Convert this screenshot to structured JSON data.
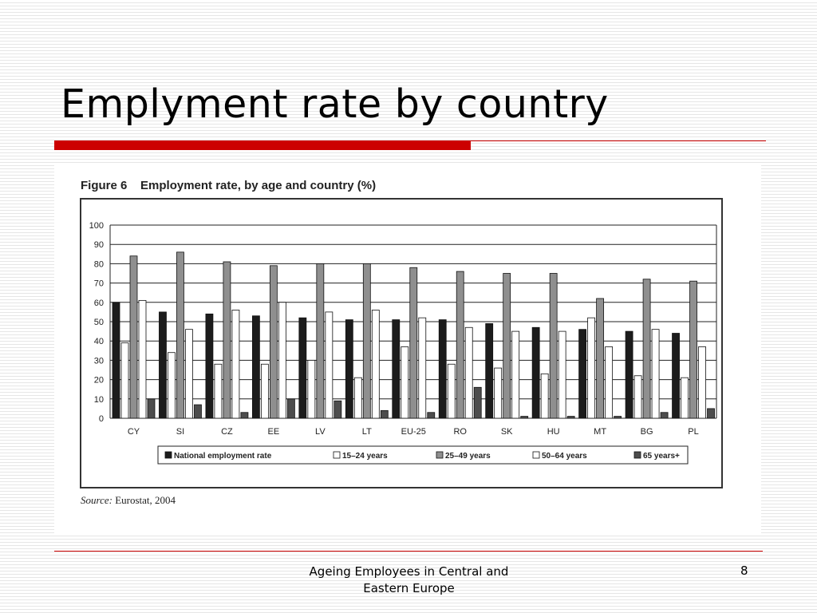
{
  "slide": {
    "title": "Emplyment rate by country",
    "footer_text": "Ageing Employees in Central and Eastern Europe",
    "page_number": "8",
    "accent_color": "#cc0000"
  },
  "figure": {
    "number": "Figure 6",
    "caption": "Employment rate, by age and country (%)",
    "source_label": "Source:",
    "source_text": "Eurostat, 2004"
  },
  "chart_data": {
    "type": "bar",
    "title": "Employment rate, by age and country (%)",
    "categories": [
      "CY",
      "SI",
      "CZ",
      "EE",
      "LV",
      "LT",
      "EU-25",
      "RO",
      "SK",
      "HU",
      "MT",
      "BG",
      "PL"
    ],
    "yticks": [
      0,
      10,
      20,
      30,
      40,
      50,
      60,
      70,
      80,
      90,
      100
    ],
    "ylim": [
      0,
      100
    ],
    "grid": true,
    "legend_position": "bottom",
    "series": [
      {
        "name": "National employment rate",
        "color": "#1c1c1c",
        "values": [
          60,
          55,
          54,
          53,
          52,
          51,
          51,
          51,
          49,
          47,
          46,
          45,
          44
        ]
      },
      {
        "name": "15–24 years",
        "color": "#ffffff",
        "values": [
          39,
          34,
          28,
          28,
          30,
          21,
          37,
          28,
          26,
          23,
          52,
          22,
          21
        ]
      },
      {
        "name": "25–49 years",
        "color": "#8f8f8f",
        "values": [
          84,
          86,
          81,
          79,
          80,
          80,
          78,
          76,
          75,
          75,
          62,
          72,
          71
        ]
      },
      {
        "name": "50–64 years",
        "color": "#ffffff",
        "values": [
          61,
          46,
          56,
          60,
          55,
          56,
          52,
          47,
          45,
          45,
          37,
          46,
          37
        ]
      },
      {
        "name": "65 years+",
        "color": "#4d4d4d",
        "values": [
          10,
          7,
          3,
          10,
          9,
          4,
          3,
          16,
          1,
          1,
          1,
          3,
          5
        ]
      }
    ]
  }
}
